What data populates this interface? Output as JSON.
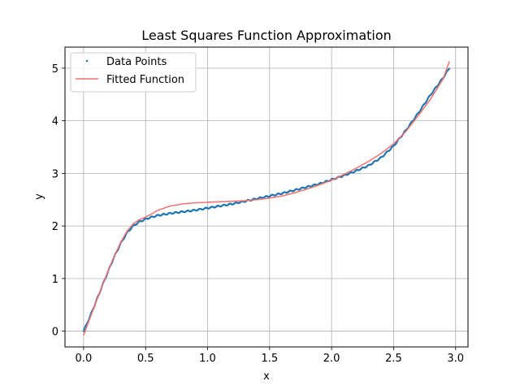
{
  "chart_data": {
    "type": "scatter",
    "title": "Least Squares Function Approximation",
    "xlabel": "x",
    "ylabel": "y",
    "xlim": [
      -0.15,
      3.1
    ],
    "ylim": [
      -0.3,
      5.4
    ],
    "xticks": [
      0.0,
      0.5,
      1.0,
      1.5,
      2.0,
      2.5,
      3.0
    ],
    "yticks": [
      0,
      1,
      2,
      3,
      4,
      5
    ],
    "xtick_labels": [
      "0.0",
      "0.5",
      "1.0",
      "1.5",
      "2.0",
      "2.5",
      "3.0"
    ],
    "ytick_labels": [
      "0",
      "1",
      "2",
      "3",
      "4",
      "5"
    ],
    "grid": true,
    "legend": {
      "placement": "top-left",
      "entries": [
        "Data Points",
        "Fitted Function"
      ]
    },
    "series": [
      {
        "name": "Data Points",
        "kind": "scatter",
        "color": "#1f77b4",
        "x": [
          0.0,
          0.05,
          0.1,
          0.15,
          0.2,
          0.25,
          0.3,
          0.35,
          0.4,
          0.45,
          0.5,
          0.55,
          0.6,
          0.7,
          0.8,
          0.9,
          1.0,
          1.1,
          1.2,
          1.3,
          1.4,
          1.5,
          1.6,
          1.7,
          1.8,
          1.9,
          2.0,
          2.1,
          2.2,
          2.3,
          2.4,
          2.5,
          2.6,
          2.7,
          2.8,
          2.9,
          2.95
        ],
        "y": [
          0.0,
          0.27,
          0.56,
          0.86,
          1.15,
          1.43,
          1.67,
          1.87,
          2.0,
          2.08,
          2.13,
          2.17,
          2.2,
          2.24,
          2.27,
          2.3,
          2.34,
          2.38,
          2.42,
          2.47,
          2.52,
          2.57,
          2.62,
          2.68,
          2.74,
          2.8,
          2.88,
          2.96,
          3.05,
          3.15,
          3.3,
          3.52,
          3.82,
          4.15,
          4.5,
          4.82,
          5.0
        ]
      },
      {
        "name": "Fitted Function",
        "kind": "line",
        "color": "#f07070",
        "x": [
          0.0,
          0.05,
          0.1,
          0.15,
          0.2,
          0.25,
          0.3,
          0.35,
          0.4,
          0.45,
          0.5,
          0.55,
          0.6,
          0.7,
          0.8,
          0.9,
          1.0,
          1.1,
          1.2,
          1.3,
          1.4,
          1.5,
          1.6,
          1.7,
          1.8,
          1.9,
          2.0,
          2.1,
          2.2,
          2.3,
          2.4,
          2.5,
          2.6,
          2.7,
          2.8,
          2.9,
          2.95
        ],
        "y": [
          -0.08,
          0.24,
          0.55,
          0.86,
          1.16,
          1.44,
          1.69,
          1.9,
          2.04,
          2.12,
          2.17,
          2.23,
          2.3,
          2.38,
          2.42,
          2.44,
          2.45,
          2.46,
          2.47,
          2.48,
          2.5,
          2.53,
          2.57,
          2.63,
          2.7,
          2.78,
          2.87,
          2.98,
          3.1,
          3.23,
          3.38,
          3.56,
          3.8,
          4.1,
          4.42,
          4.8,
          5.13
        ]
      }
    ]
  }
}
